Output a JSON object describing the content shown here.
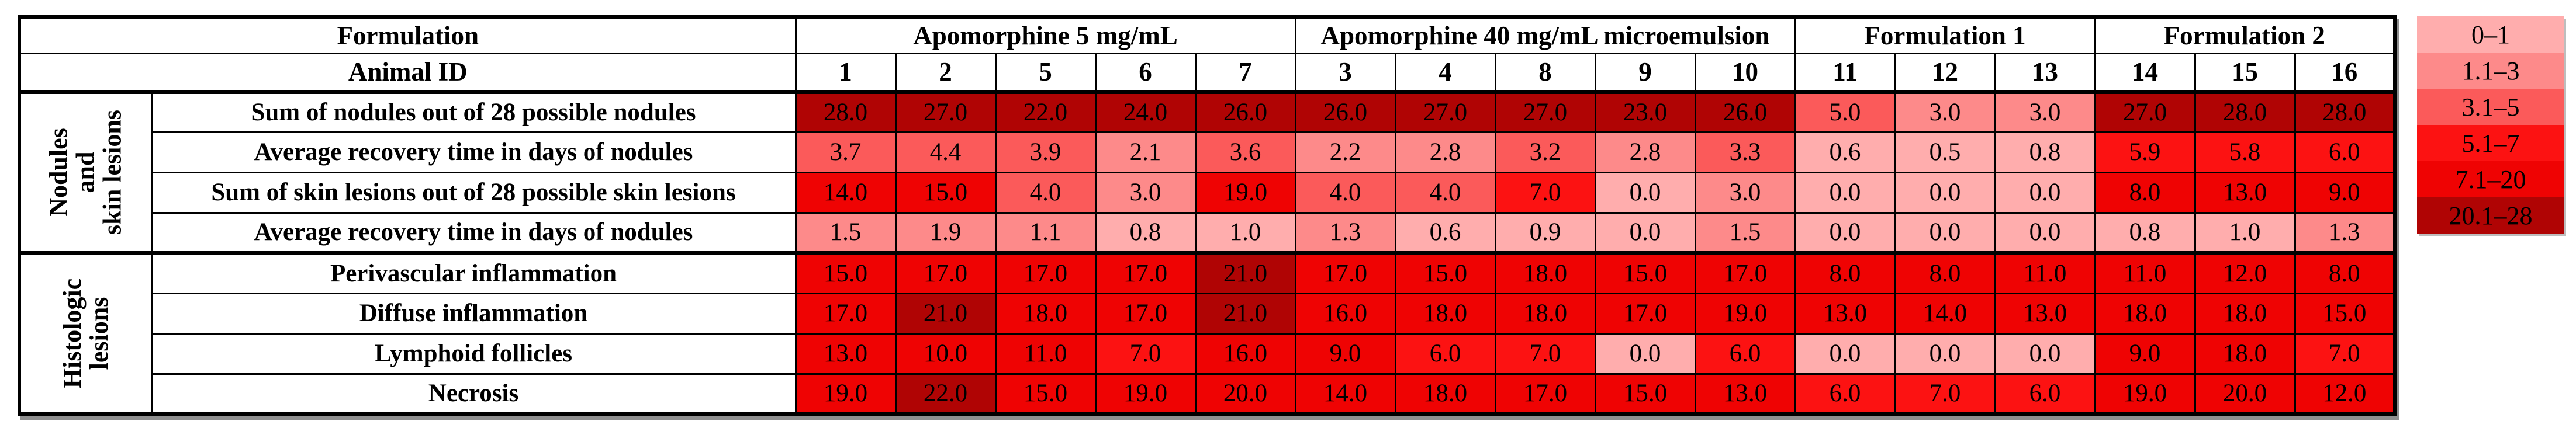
{
  "table": {
    "formulation_label": "Formulation",
    "animal_id_label": "Animal ID",
    "groups": [
      {
        "label": "Apomorphine 5 mg/mL",
        "animals": [
          "1",
          "2",
          "5",
          "6",
          "7"
        ]
      },
      {
        "label": "Apomorphine 40 mg/mL microemulsion",
        "animals": [
          "3",
          "4",
          "8",
          "9",
          "10"
        ]
      },
      {
        "label": "Formulation 1",
        "animals": [
          "11",
          "12",
          "13"
        ]
      },
      {
        "label": "Formulation 2",
        "animals": [
          "14",
          "15",
          "16"
        ]
      }
    ],
    "row_groups": [
      {
        "label": "Nodules\nand\nskin lesions",
        "row_indices": [
          0,
          1,
          2,
          3
        ]
      },
      {
        "label": "Histologic\nlesions",
        "row_indices": [
          4,
          5,
          6,
          7
        ]
      }
    ]
  },
  "chart_data": {
    "type": "heatmap",
    "title": "",
    "column_groups": [
      "Apomorphine 5 mg/mL",
      "Apomorphine 40 mg/mL microemulsion",
      "Formulation 1",
      "Formulation 2"
    ],
    "animal_ids": [
      1,
      2,
      5,
      6,
      7,
      3,
      4,
      8,
      9,
      10,
      11,
      12,
      13,
      14,
      15,
      16
    ],
    "value_range": [
      0,
      28
    ],
    "rows": [
      {
        "group": "Nodules and skin lesions",
        "label": "Sum of nodules out of 28 possible nodules",
        "values": [
          28.0,
          27.0,
          22.0,
          24.0,
          26.0,
          26.0,
          27.0,
          27.0,
          23.0,
          26.0,
          5.0,
          3.0,
          3.0,
          27.0,
          28.0,
          28.0
        ]
      },
      {
        "group": "Nodules and skin lesions",
        "label": "Average recovery time in days of nodules",
        "values": [
          3.7,
          4.4,
          3.9,
          2.1,
          3.6,
          2.2,
          2.8,
          3.2,
          2.8,
          3.3,
          0.6,
          0.5,
          0.8,
          5.9,
          5.8,
          6.0
        ]
      },
      {
        "group": "Nodules and skin lesions",
        "label": "Sum of skin lesions out of 28 possible skin lesions",
        "values": [
          14.0,
          15.0,
          4.0,
          3.0,
          19.0,
          4.0,
          4.0,
          7.0,
          0.0,
          3.0,
          0.0,
          0.0,
          0.0,
          8.0,
          13.0,
          9.0
        ]
      },
      {
        "group": "Nodules and skin lesions",
        "label": "Average recovery time in days of nodules",
        "values": [
          1.5,
          1.9,
          1.1,
          0.8,
          1.0,
          1.3,
          0.6,
          0.9,
          0.0,
          1.5,
          0.0,
          0.0,
          0.0,
          0.8,
          1.0,
          1.3
        ]
      },
      {
        "group": "Histologic lesions",
        "label": "Perivascular inflammation",
        "values": [
          15.0,
          17.0,
          17.0,
          17.0,
          21.0,
          17.0,
          15.0,
          18.0,
          15.0,
          17.0,
          8.0,
          8.0,
          11.0,
          11.0,
          12.0,
          8.0
        ]
      },
      {
        "group": "Histologic lesions",
        "label": "Diffuse inflammation",
        "values": [
          17.0,
          21.0,
          18.0,
          17.0,
          21.0,
          16.0,
          18.0,
          18.0,
          17.0,
          19.0,
          13.0,
          14.0,
          13.0,
          18.0,
          18.0,
          15.0
        ]
      },
      {
        "group": "Histologic lesions",
        "label": "Lymphoid follicles",
        "values": [
          13.0,
          10.0,
          11.0,
          7.0,
          16.0,
          9.0,
          6.0,
          7.0,
          0.0,
          6.0,
          0.0,
          0.0,
          0.0,
          9.0,
          18.0,
          7.0
        ]
      },
      {
        "group": "Histologic lesions",
        "label": "Necrosis",
        "values": [
          19.0,
          22.0,
          15.0,
          19.0,
          20.0,
          14.0,
          18.0,
          17.0,
          15.0,
          13.0,
          6.0,
          7.0,
          6.0,
          19.0,
          20.0,
          12.0
        ]
      }
    ]
  },
  "legend": {
    "bands": [
      {
        "label": "0–1",
        "max": 1,
        "color": "#ffadad"
      },
      {
        "label": "1.1–3",
        "max": 3,
        "color": "#fd8a8a"
      },
      {
        "label": "3.1–5",
        "max": 5,
        "color": "#fb5a5a"
      },
      {
        "label": "5.1–7",
        "max": 7,
        "color": "#fc1212"
      },
      {
        "label": "7.1–20",
        "max": 20,
        "color": "#ef0303"
      },
      {
        "label": "20.1–28",
        "max": 28,
        "color": "#b00404"
      }
    ]
  }
}
